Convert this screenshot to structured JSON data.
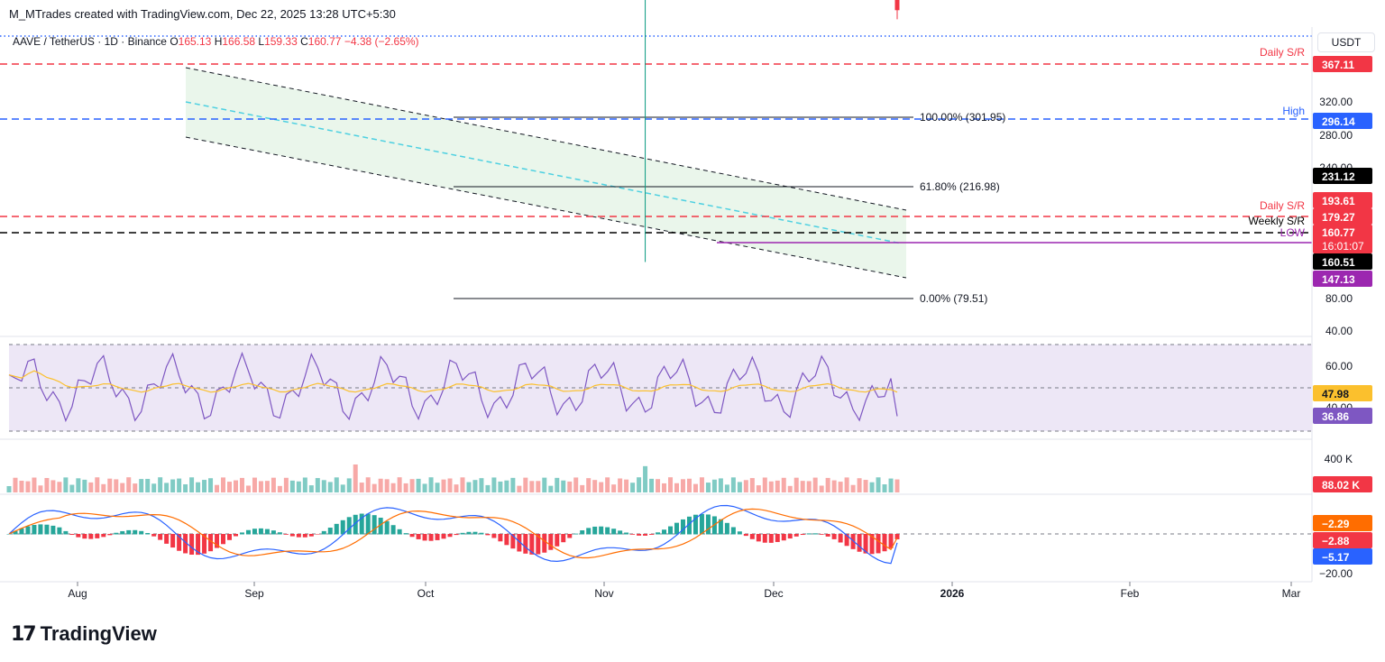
{
  "header": {
    "attribution": "M_MTrades created with TradingView.com, Dec 22, 2025 13:28 UTC+5:30",
    "symbol": "AAVE / TetherUS · 1D · Binance",
    "ohlc": {
      "o_label": "O",
      "o": "165.13",
      "h_label": "H",
      "h": "166.58",
      "l_label": "L",
      "l": "159.33",
      "c_label": "C",
      "c": "160.77",
      "change": "−4.38 (−2.65%)"
    }
  },
  "unit_label": "USDT",
  "brand": "TradingView",
  "colors": {
    "red": "#f23645",
    "green": "#089981",
    "blue": "#2962ff",
    "purple": "#9c27b0",
    "ma50": "#e3161f",
    "ma200": "#000000",
    "rsi": "#7e57c2",
    "rsi_ma": "#fbc02d",
    "channel_fill": "#e8f5e9",
    "dashed_mid": "#4dd0e1",
    "macd": "#2962ff",
    "signal": "#ff6d00"
  },
  "chart_data": {
    "type": "candlestick",
    "price_axis": {
      "ticks": [
        "320.00",
        "280.00",
        "240.00",
        "80.00",
        "40.00"
      ],
      "top_value": "367.11"
    },
    "time_axis": [
      "Aug",
      "Sep",
      "Oct",
      "Nov",
      "Dec",
      "2026",
      "Feb",
      "Mar"
    ],
    "levels": [
      {
        "label": "Daily S/R",
        "value": "367.11",
        "color": "#f23645",
        "style": "dashed"
      },
      {
        "label": "High",
        "value": "296.14",
        "color": "#2962ff",
        "style": "dashed"
      },
      {
        "label": "Daily S/R",
        "value": "179.27",
        "color": "#f23645",
        "style": "dashed"
      },
      {
        "label": "Weekly S/R",
        "value": "160.51",
        "color": "#000000",
        "style": "dashed"
      },
      {
        "label": "LOW",
        "value": "147.13",
        "color": "#9c27b0",
        "style": "solid"
      }
    ],
    "price_badges": [
      {
        "text": "231.12",
        "color": "#000000"
      },
      {
        "text": "193.61",
        "color": "#f23645"
      },
      {
        "text": "160.77",
        "color": "#f23645",
        "extra": "16:01:07"
      }
    ],
    "fib": [
      {
        "label": "100.00% (301.95)"
      },
      {
        "label": "61.80% (216.98)"
      },
      {
        "label": "0.00% (79.51)"
      }
    ],
    "rsi": {
      "ticks": [
        "60.00",
        "40.00"
      ],
      "value": "36.86",
      "ma_value": "47.98"
    },
    "volume": {
      "tick": "400 K",
      "value": "88.02 K"
    },
    "macd": {
      "ticks": [
        "−20.00"
      ],
      "signal": "−2.29",
      "hist": "−2.88",
      "macd": "−5.17"
    }
  }
}
